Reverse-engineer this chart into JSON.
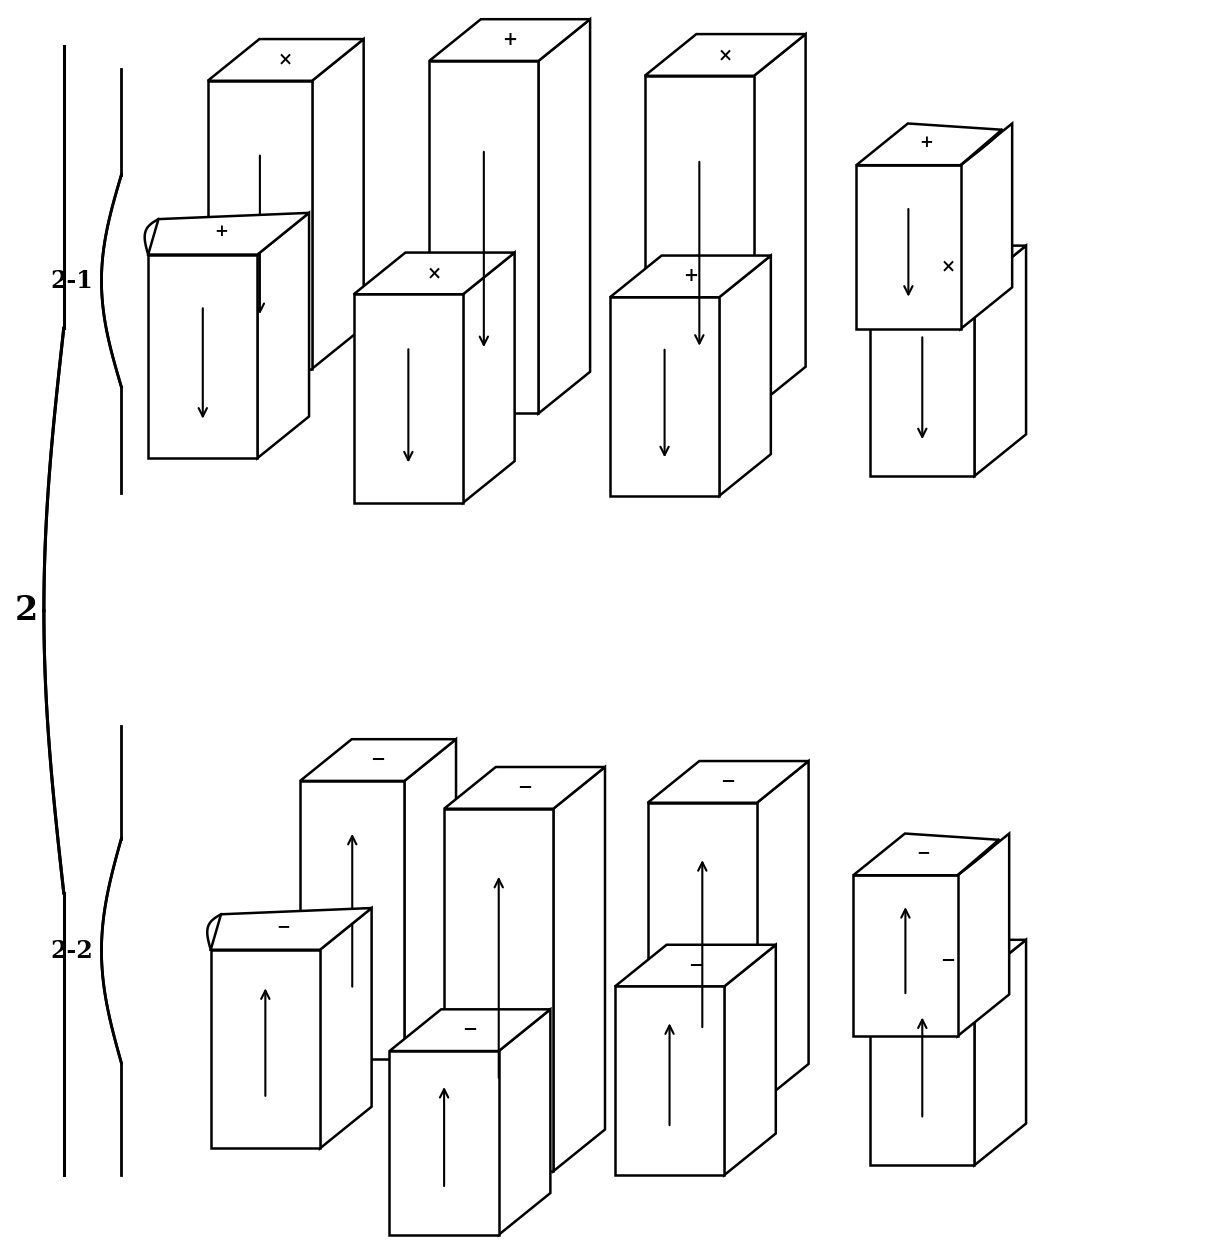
{
  "label_2": "2",
  "label_21": "2-1",
  "label_22": "2-2",
  "fig_width": 12.08,
  "fig_height": 12.47,
  "lw": 1.8
}
